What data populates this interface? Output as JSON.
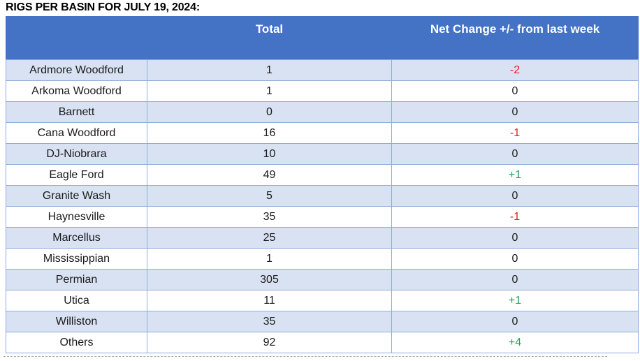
{
  "title": "RIGS PER BASIN FOR JULY 19, 2024:",
  "colors": {
    "header_bg": "#4472C4",
    "band_bg": "#D9E2F3",
    "border": "#8EAADB",
    "negative": "#E02220",
    "positive": "#21A452"
  },
  "table": {
    "columns": {
      "basin": "",
      "total": "Total",
      "change": "Net Change +/- from last week"
    },
    "rows": [
      {
        "basin": "Ardmore Woodford",
        "total": "1",
        "change": "-2"
      },
      {
        "basin": "Arkoma Woodford",
        "total": "1",
        "change": "0"
      },
      {
        "basin": "Barnett",
        "total": "0",
        "change": "0"
      },
      {
        "basin": "Cana Woodford",
        "total": "16",
        "change": "-1"
      },
      {
        "basin": "DJ-Niobrara",
        "total": "10",
        "change": "0"
      },
      {
        "basin": "Eagle Ford",
        "total": "49",
        "change": "+1"
      },
      {
        "basin": "Granite Wash",
        "total": "5",
        "change": "0"
      },
      {
        "basin": "Haynesville",
        "total": "35",
        "change": "-1"
      },
      {
        "basin": "Marcellus",
        "total": "25",
        "change": "0"
      },
      {
        "basin": "Mississippian",
        "total": "1",
        "change": "0"
      },
      {
        "basin": "Permian",
        "total": "305",
        "change": "0"
      },
      {
        "basin": "Utica",
        "total": "11",
        "change": "+1"
      },
      {
        "basin": "Williston",
        "total": "35",
        "change": "0"
      },
      {
        "basin": "Others",
        "total": "92",
        "change": "+4"
      }
    ]
  }
}
